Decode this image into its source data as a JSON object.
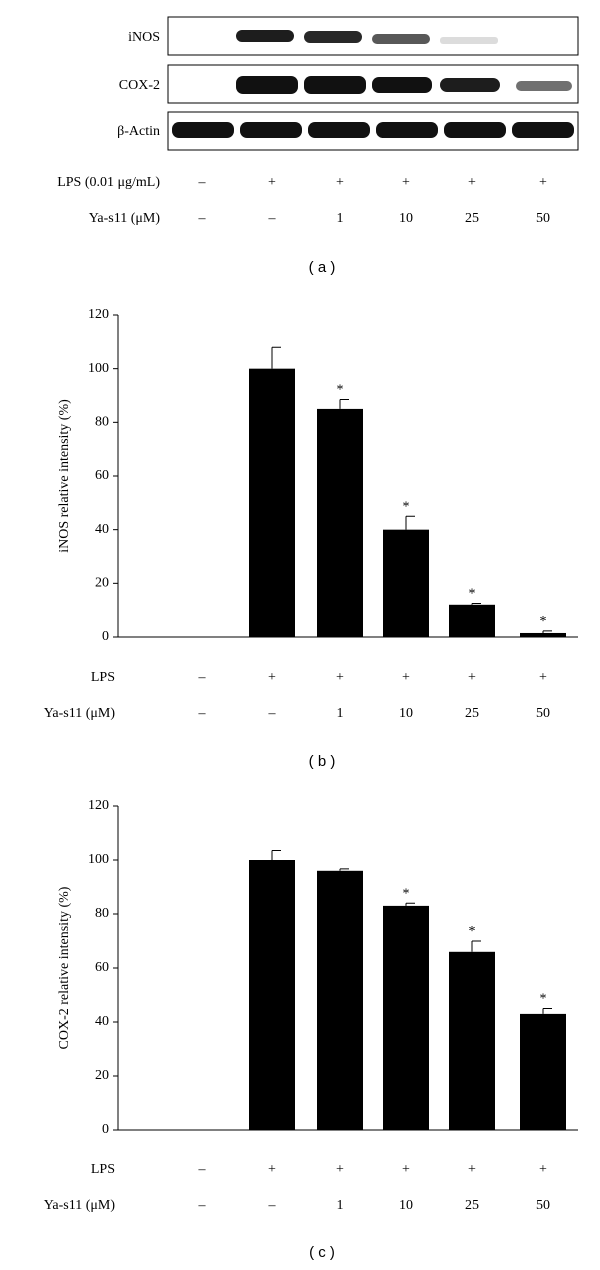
{
  "blot": {
    "bands": [
      "iNOS",
      "COX-2",
      "β-Actin"
    ],
    "lps_label": "LPS (0.01 μg/mL)",
    "lps": [
      "–",
      "+",
      "+",
      "+",
      "+",
      "+"
    ],
    "dose_label": "Ya-s11 (μM)",
    "dose": [
      "–",
      "–",
      "1",
      "10",
      "25",
      "50"
    ],
    "panel_label": "( a )"
  },
  "chart_data": [
    {
      "type": "bar",
      "ylabel": "iNOS relative intensity (%)",
      "panel_label": "( b )",
      "lps_label": "LPS",
      "lps": [
        "–",
        "+",
        "+",
        "+",
        "+",
        "+"
      ],
      "dose_label": "Ya-s11 (μM)",
      "categories": [
        "–",
        "–",
        "1",
        "10",
        "25",
        "50"
      ],
      "values": [
        0,
        100,
        85,
        40,
        12,
        1.5
      ],
      "errors": [
        0,
        8,
        3.5,
        5,
        0.5,
        0.8
      ],
      "annotations": [
        null,
        null,
        "*",
        "*",
        "*",
        "*"
      ],
      "color": "#000000",
      "ylim": [
        0,
        120
      ],
      "yticks": [
        0,
        20,
        40,
        60,
        80,
        100,
        120
      ]
    },
    {
      "type": "bar",
      "ylabel": "COX-2 relative intensity (%)",
      "panel_label": "( c )",
      "lps_label": "LPS",
      "lps": [
        "–",
        "+",
        "+",
        "+",
        "+",
        "+"
      ],
      "dose_label": "Ya-s11 (μM)",
      "categories": [
        "–",
        "–",
        "1",
        "10",
        "25",
        "50"
      ],
      "values": [
        0,
        100,
        96,
        83,
        66,
        43
      ],
      "errors": [
        0,
        3.5,
        0.7,
        1,
        4,
        2
      ],
      "annotations": [
        null,
        null,
        null,
        "*",
        "*",
        "*"
      ],
      "color": "#000000",
      "ylim": [
        0,
        120
      ],
      "yticks": [
        0,
        20,
        40,
        60,
        80,
        100,
        120
      ]
    }
  ]
}
